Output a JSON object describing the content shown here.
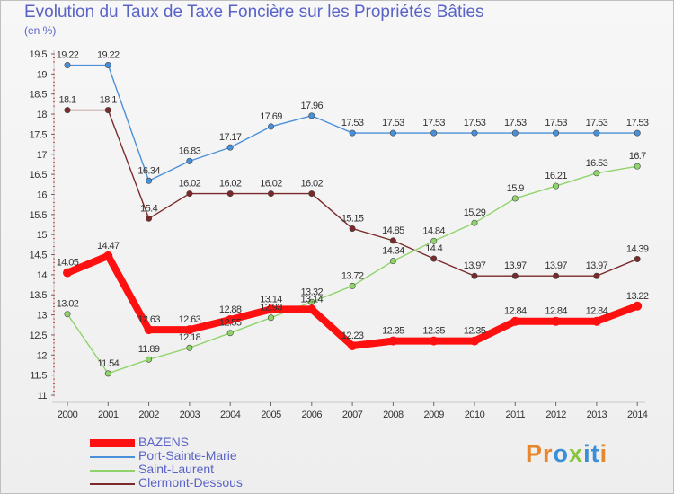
{
  "header": {
    "title": "Evolution du Taux de Taxe Foncière sur les Propriétés Bâties",
    "unit": "(en %)"
  },
  "logo": {
    "text": "Proxiti",
    "letters": [
      "P",
      "r",
      "o",
      "x",
      "i",
      "t",
      "i"
    ],
    "colors": [
      "#e8862e",
      "#e8862e",
      "#3a8fd6",
      "#8bc540",
      "#3a8fd6",
      "#3a8fd6",
      "#e8862e"
    ]
  },
  "chart_data": {
    "type": "line",
    "title": "Evolution du Taux de Taxe Foncière sur les Propriétés Bâties",
    "ylabel": "(en %)",
    "xlabel": "",
    "categories": [
      "2000",
      "2001",
      "2002",
      "2003",
      "2004",
      "2005",
      "2006",
      "2007",
      "2008",
      "2009",
      "2010",
      "2011",
      "2012",
      "2013",
      "2014"
    ],
    "ylim": [
      11,
      19.5
    ],
    "yticks": [
      "11",
      "11.5",
      "12",
      "12.5",
      "13",
      "13.5",
      "14",
      "14.5",
      "15",
      "15.5",
      "16",
      "16.5",
      "17",
      "17.5",
      "18",
      "18.5",
      "19",
      "19.5"
    ],
    "grid": false,
    "legend_position": "bottom-left",
    "series": [
      {
        "name": "Port-Sainte-Marie",
        "color": "#4a90d9",
        "values": [
          19.22,
          19.22,
          16.34,
          16.83,
          17.17,
          17.69,
          17.96,
          17.53,
          17.53,
          17.53,
          17.53,
          17.53,
          17.53,
          17.53,
          17.53
        ],
        "labels": [
          "19.22",
          "19.22",
          "16.34",
          "16.83",
          "17.17",
          "17.69",
          "17.96",
          "17.53",
          "17.53",
          "17.53",
          "17.53",
          "17.53",
          "17.53",
          "17.53",
          "17.53"
        ]
      },
      {
        "name": "Clermont-Dessous",
        "color": "#7a2a2a",
        "values": [
          18.1,
          18.1,
          15.4,
          16.02,
          16.02,
          16.02,
          16.02,
          15.15,
          14.85,
          14.4,
          13.97,
          13.97,
          13.97,
          13.97,
          14.39
        ],
        "labels": [
          "18.1",
          "18.1",
          "15.4",
          "16.02",
          "16.02",
          "16.02",
          "16.02",
          "15.15",
          "14.85",
          "14.4",
          "13.97",
          "13.97",
          "13.97",
          "13.97",
          "14.39"
        ]
      },
      {
        "name": "Saint-Laurent",
        "color": "#8fd46a",
        "values": [
          13.02,
          11.54,
          11.89,
          12.18,
          12.55,
          12.93,
          13.32,
          13.72,
          14.34,
          14.84,
          15.29,
          15.9,
          16.21,
          16.53,
          16.7
        ],
        "labels": [
          "13.02",
          "11.54",
          "11.89",
          "12.18",
          "12.55",
          "12.93",
          "13.32",
          "13.72",
          "14.34",
          "14.84",
          "15.29",
          "15.9",
          "16.21",
          "16.53",
          "16.7"
        ]
      },
      {
        "name": "BAZENS",
        "color": "#ff1010",
        "values": [
          14.05,
          14.47,
          12.63,
          12.63,
          12.88,
          13.14,
          13.14,
          12.23,
          12.35,
          12.35,
          12.35,
          12.84,
          12.84,
          12.84,
          13.22
        ],
        "labels": [
          "14.05",
          "14.47",
          "12.63",
          "12.63",
          "12.88",
          "13.14",
          "13.14",
          "12.23",
          "12.35",
          "12.35",
          "12.35",
          "12.84",
          "12.84",
          "12.84",
          "13.22"
        ]
      }
    ],
    "legend": [
      "BAZENS",
      "Port-Sainte-Marie",
      "Saint-Laurent",
      "Clermont-Dessous"
    ]
  }
}
